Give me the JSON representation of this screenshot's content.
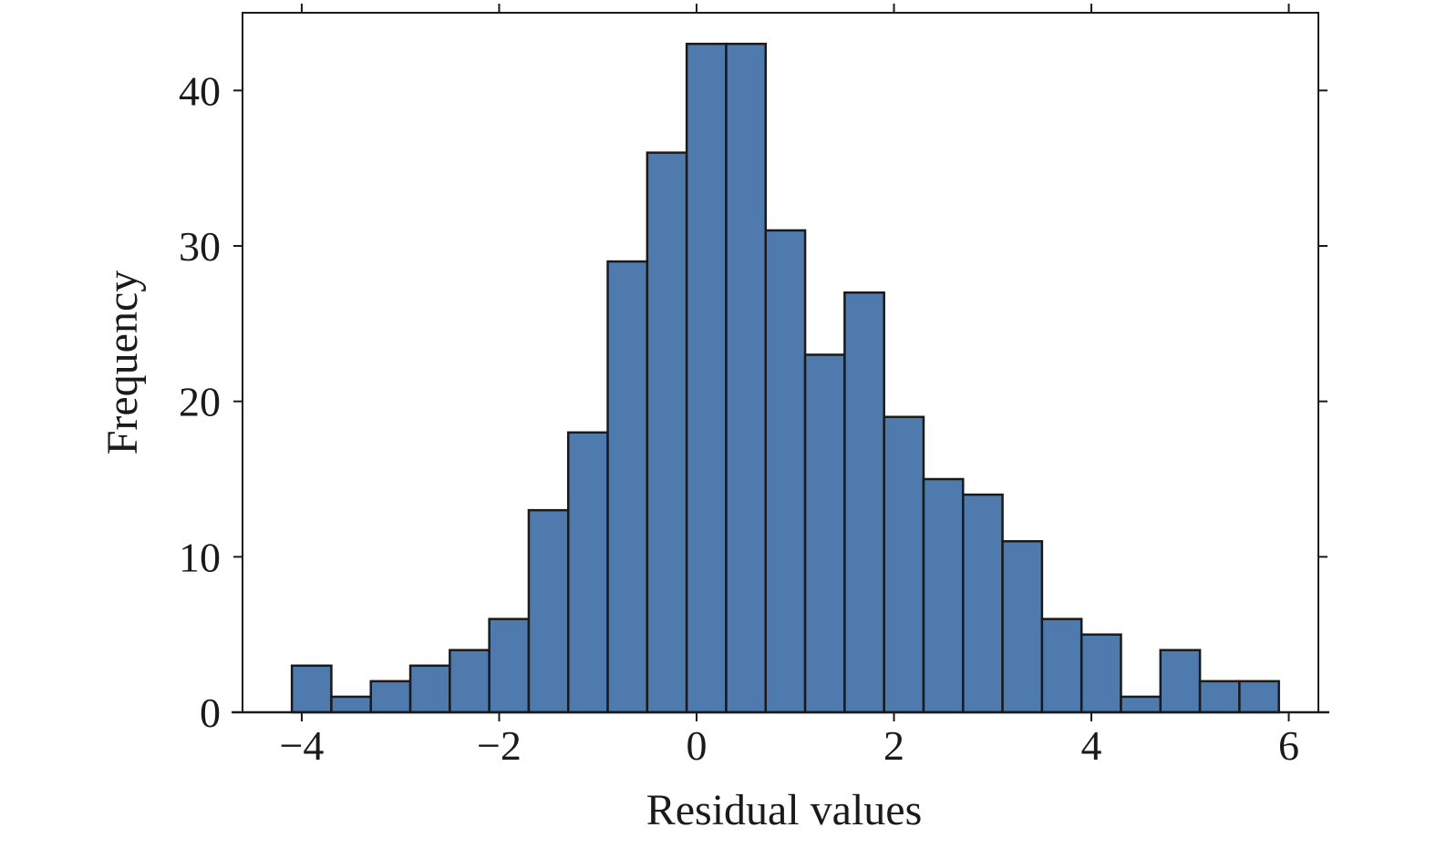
{
  "chart_data": {
    "type": "bar",
    "xlabel": "Residual values",
    "ylabel": "Frequency",
    "xlim": [
      -4.6,
      6.3
    ],
    "ylim": [
      0,
      45
    ],
    "xticks": [
      -4,
      -2,
      0,
      2,
      4,
      6
    ],
    "xtick_labels": [
      "−4",
      "−2",
      "0",
      "2",
      "4",
      "6"
    ],
    "yticks": [
      0,
      10,
      20,
      30,
      40
    ],
    "ytick_labels": [
      "0",
      "10",
      "20",
      "30",
      "40"
    ],
    "bin_edges": [
      -4.1,
      -3.7,
      -3.3,
      -2.9,
      -2.5,
      -2.1,
      -1.7,
      -1.3,
      -0.9,
      -0.5,
      -0.1,
      0.3,
      0.7,
      1.1,
      1.5,
      1.9,
      2.3,
      2.7,
      3.1,
      3.5,
      3.9,
      4.3,
      4.7,
      5.1,
      5.5,
      5.9
    ],
    "values": [
      3,
      1,
      2,
      3,
      4,
      6,
      13,
      18,
      29,
      36,
      43,
      43,
      31,
      23,
      27,
      19,
      15,
      14,
      11,
      6,
      5,
      1,
      4,
      2,
      2
    ],
    "bar_color": "#4e7aad",
    "edge_color": "#1a1a1a",
    "grid": false,
    "legend": "none"
  }
}
